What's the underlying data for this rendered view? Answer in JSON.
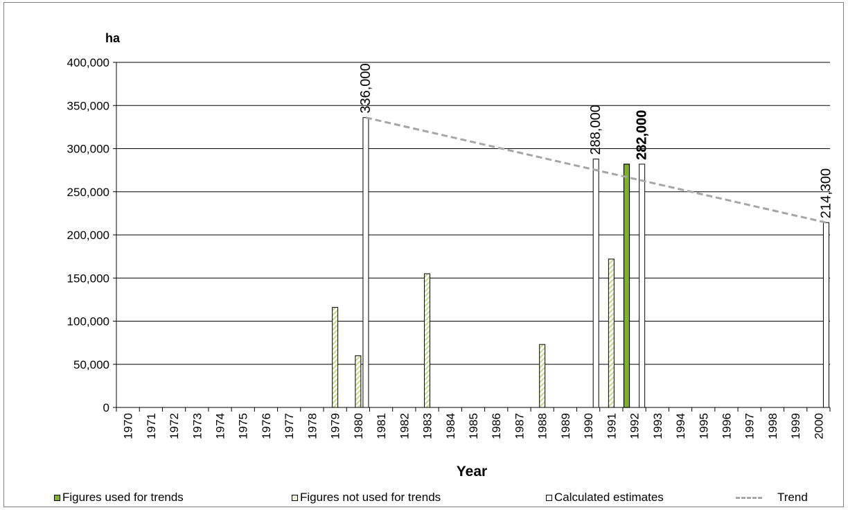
{
  "chart_data": {
    "type": "bar",
    "ylabel": "ha",
    "xlabel": "Year",
    "ylim": [
      0,
      400000
    ],
    "yticks": [
      "0",
      "50,000",
      "100,000",
      "150,000",
      "200,000",
      "250,000",
      "300,000",
      "350,000",
      "400,000"
    ],
    "categories": [
      "1970",
      "1971",
      "1972",
      "1973",
      "1974",
      "1975",
      "1976",
      "1977",
      "1978",
      "1979",
      "1980",
      "1981",
      "1982",
      "1983",
      "1984",
      "1985",
      "1986",
      "1987",
      "1988",
      "1989",
      "1990",
      "1991",
      "1992",
      "1993",
      "1994",
      "1995",
      "1996",
      "1997",
      "1998",
      "1999",
      "2000"
    ],
    "grid": true,
    "legend_position": "bottom",
    "series": [
      {
        "name": "Figures used for trends",
        "color": "#7db324",
        "points": [
          {
            "x": "1992",
            "y": 282000
          }
        ]
      },
      {
        "name": "Figures not used for trends",
        "color": "#d9e8a8",
        "points": [
          {
            "x": "1979",
            "y": 116000
          },
          {
            "x": "1980",
            "y": 60000
          },
          {
            "x": "1983",
            "y": 155000
          },
          {
            "x": "1988",
            "y": 73000
          },
          {
            "x": "1991",
            "y": 172000
          }
        ]
      },
      {
        "name": "Calculated estimates",
        "color": "#ffffff",
        "points": [
          {
            "x": "1980",
            "y": 336000
          },
          {
            "x": "1990",
            "y": 288000
          },
          {
            "x": "1992",
            "y": 282000
          },
          {
            "x": "2000",
            "y": 214300
          }
        ]
      },
      {
        "name": "Trend",
        "color": "#a6a6a6",
        "points": [
          {
            "x": "1980",
            "y": 336000
          },
          {
            "x": "2000",
            "y": 214300
          }
        ]
      }
    ],
    "data_labels": [
      {
        "x": "1980",
        "y": 336000,
        "text": "336,000"
      },
      {
        "x": "1990",
        "y": 288000,
        "text": "288,000"
      },
      {
        "x": "1992",
        "y": 282000,
        "text": "282,000"
      },
      {
        "x": "1992",
        "y": 282000,
        "text": "282,000"
      },
      {
        "x": "2000",
        "y": 214300,
        "text": "214,300"
      }
    ]
  },
  "legend": {
    "used": "Figures used for trends",
    "not_used": "Figures not used for trends",
    "calculated": "Calculated estimates",
    "trend": "Trend"
  }
}
